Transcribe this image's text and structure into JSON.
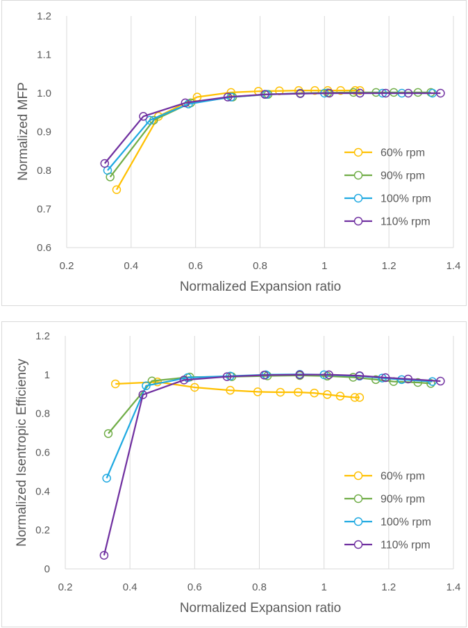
{
  "chart_data": [
    {
      "type": "line",
      "title": "",
      "xlabel": "Normalized Expansion ratio",
      "ylabel": "Normalized MFP",
      "xlim": [
        0.2,
        1.4
      ],
      "ylim": [
        0.6,
        1.2
      ],
      "xticks": [
        0.2,
        0.4,
        0.6,
        0.8,
        1.0,
        1.2,
        1.4
      ],
      "xtick_labels": [
        "0.2",
        "0.4",
        "0.6",
        "0.8",
        "1",
        "1.2",
        "1.4"
      ],
      "yticks": [
        0.6,
        0.7,
        0.8,
        0.9,
        1.0,
        1.1,
        1.2
      ],
      "ytick_labels": [
        "0.6",
        "0.7",
        "0.8",
        "0.9",
        "1.0",
        "1.1",
        "1.2"
      ],
      "grid": "vertical",
      "legend_position": "center-right",
      "series": [
        {
          "name": "60% rpm",
          "color": "#ffc000",
          "x": [
            0.355,
            0.485,
            0.605,
            0.71,
            0.795,
            0.86,
            0.92,
            0.97,
            1.01,
            1.05,
            1.095,
            1.11
          ],
          "y": [
            0.75,
            0.94,
            0.99,
            1.002,
            1.005,
            1.006,
            1.007,
            1.007,
            1.007,
            1.007,
            1.007,
            1.007
          ]
        },
        {
          "name": "90% rpm",
          "color": "#70ad47",
          "x": [
            0.335,
            0.47,
            0.585,
            0.715,
            0.825,
            0.925,
            1.01,
            1.09,
            1.16,
            1.215,
            1.29,
            1.33
          ],
          "y": [
            0.783,
            0.93,
            0.975,
            0.99,
            0.997,
            1.0,
            1.001,
            1.002,
            1.002,
            1.002,
            1.002,
            1.002
          ]
        },
        {
          "name": "100% rpm",
          "color": "#1fa9e1",
          "x": [
            0.327,
            0.458,
            0.578,
            0.71,
            0.82,
            0.925,
            1.0,
            1.11,
            1.18,
            1.24,
            1.335
          ],
          "y": [
            0.8,
            0.93,
            0.972,
            0.99,
            0.997,
            0.999,
            1.0,
            1.0,
            1.0,
            1.0,
            1.0
          ]
        },
        {
          "name": "110% rpm",
          "color": "#7030a0",
          "x": [
            0.318,
            0.438,
            0.568,
            0.7,
            0.815,
            0.925,
            1.015,
            1.11,
            1.19,
            1.26,
            1.36
          ],
          "y": [
            0.818,
            0.94,
            0.975,
            0.99,
            0.997,
            0.999,
            1.0,
            1.0,
            1.0,
            1.0,
            1.0
          ]
        }
      ]
    },
    {
      "type": "line",
      "title": "",
      "xlabel": "Normalized Expansion ratio",
      "ylabel": "Normalized Isentropic Efficiency",
      "xlim": [
        0.2,
        1.4
      ],
      "ylim": [
        0,
        1.2
      ],
      "xticks": [
        0.2,
        0.4,
        0.6,
        0.8,
        1.0,
        1.2,
        1.4
      ],
      "xtick_labels": [
        "0.2",
        "0.4",
        "0.6",
        "0.8",
        "1",
        "1.2",
        "1.4"
      ],
      "yticks": [
        0,
        0.2,
        0.4,
        0.6,
        0.8,
        1.0,
        1.2
      ],
      "ytick_labels": [
        "0",
        "0.2",
        "0.4",
        "0.6",
        "0.8",
        "1",
        "1.2"
      ],
      "grid": "vertical",
      "legend_position": "bottom-right",
      "series": [
        {
          "name": "60% rpm",
          "color": "#ffc000",
          "x": [
            0.355,
            0.485,
            0.6,
            0.71,
            0.795,
            0.865,
            0.92,
            0.97,
            1.01,
            1.05,
            1.095,
            1.11
          ],
          "y": [
            0.953,
            0.963,
            0.935,
            0.92,
            0.912,
            0.91,
            0.91,
            0.906,
            0.898,
            0.89,
            0.883,
            0.883
          ]
        },
        {
          "name": "90% rpm",
          "color": "#70ad47",
          "x": [
            0.333,
            0.468,
            0.585,
            0.715,
            0.825,
            0.925,
            1.01,
            1.09,
            1.16,
            1.215,
            1.29,
            1.33
          ],
          "y": [
            0.697,
            0.968,
            0.988,
            0.99,
            0.994,
            0.996,
            0.993,
            0.987,
            0.975,
            0.965,
            0.96,
            0.955
          ]
        },
        {
          "name": "100% rpm",
          "color": "#1fa9e1",
          "x": [
            0.328,
            0.45,
            0.578,
            0.71,
            0.82,
            0.925,
            1.0,
            1.11,
            1.18,
            1.24,
            1.335
          ],
          "y": [
            0.467,
            0.943,
            0.985,
            0.993,
            1.0,
            1.002,
            1.0,
            0.993,
            0.983,
            0.975,
            0.965
          ]
        },
        {
          "name": "110% rpm",
          "color": "#7030a0",
          "x": [
            0.32,
            0.44,
            0.567,
            0.7,
            0.815,
            0.925,
            1.015,
            1.11,
            1.19,
            1.26,
            1.36
          ],
          "y": [
            0.07,
            0.897,
            0.973,
            0.99,
            0.998,
            1.0,
            1.0,
            0.995,
            0.985,
            0.978,
            0.967
          ]
        }
      ]
    }
  ]
}
